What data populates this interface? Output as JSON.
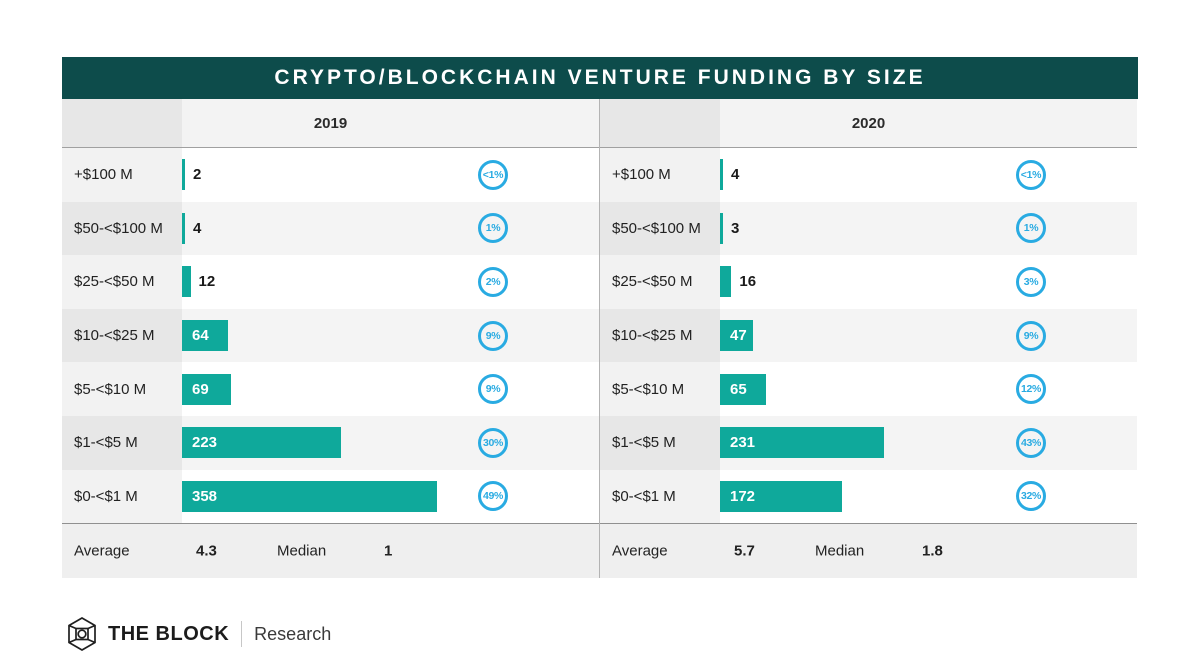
{
  "title": "CRYPTO/BLOCKCHAIN VENTURE FUNDING BY SIZE",
  "colors": {
    "title_bg": "#0d4c4b",
    "bar": "#0fa99b",
    "circle_blue": "#29abe2"
  },
  "chart_data": {
    "type": "bar",
    "title": "CRYPTO/BLOCKCHAIN VENTURE FUNDING BY SIZE",
    "orientation": "horizontal",
    "categories": [
      "+$100 M",
      "$50-<$100 M",
      "$25-<$50 M",
      "$10-<$25 M",
      "$5-<$10 M",
      "$1-<$5 M",
      "$0-<$1 M"
    ],
    "series": [
      {
        "name": "2019",
        "values": [
          2,
          4,
          12,
          64,
          69,
          223,
          358
        ],
        "percents": [
          "<1%",
          "1%",
          "2%",
          "9%",
          "9%",
          "30%",
          "49%"
        ],
        "average": "4.3",
        "median": "1"
      },
      {
        "name": "2020",
        "values": [
          4,
          3,
          16,
          47,
          65,
          231,
          172
        ],
        "percents": [
          "<1%",
          "1%",
          "3%",
          "9%",
          "12%",
          "43%",
          "32%"
        ],
        "average": "5.7",
        "median": "1.8"
      }
    ],
    "legend": "none",
    "grid": false
  },
  "footer": {
    "average_label": "Average",
    "median_label": "Median"
  },
  "branding": {
    "name": "THE BLOCK",
    "sub": "Research"
  }
}
